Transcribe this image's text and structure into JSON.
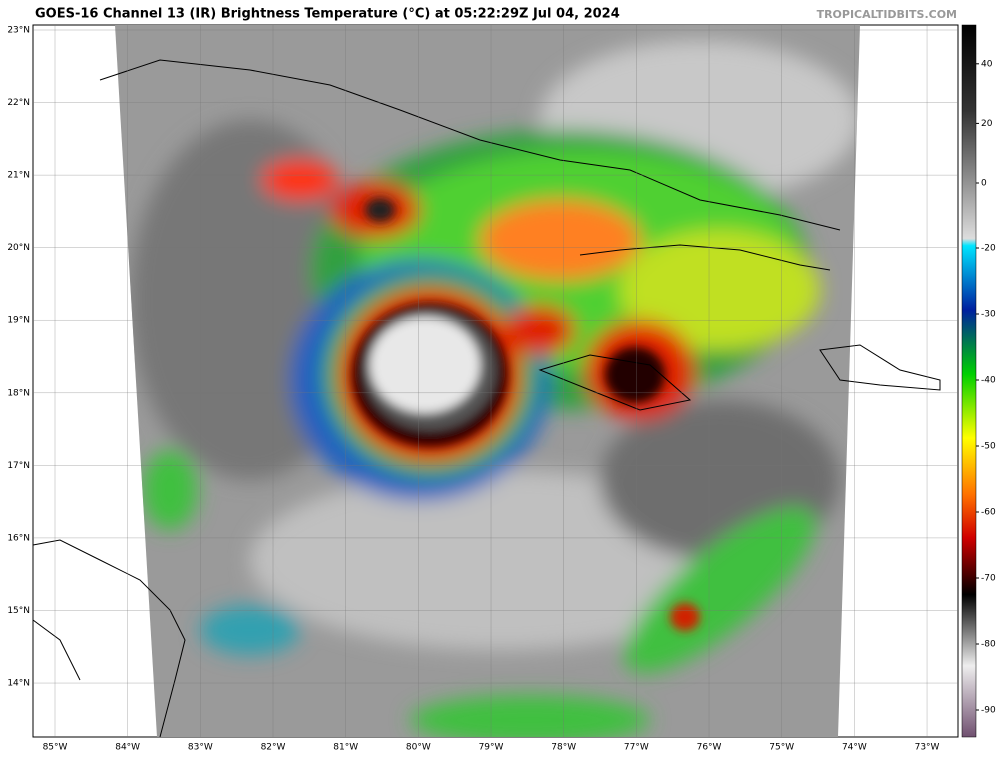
{
  "header": {
    "title": "GOES-16 Channel 13 (IR) Brightness Temperature (°C) at 05:22:29Z Jul 04, 2024",
    "credit": "TROPICALTIDBITS.COM"
  },
  "map": {
    "longitudes": [
      {
        "value": -85,
        "label": "85°W"
      },
      {
        "value": -84,
        "label": "84°W"
      },
      {
        "value": -83,
        "label": "83°W"
      },
      {
        "value": -82,
        "label": "82°W"
      },
      {
        "value": -81,
        "label": "81°W"
      },
      {
        "value": -80,
        "label": "80°W"
      },
      {
        "value": -79,
        "label": "79°W"
      },
      {
        "value": -78,
        "label": "78°W"
      },
      {
        "value": -77,
        "label": "77°W"
      },
      {
        "value": -76,
        "label": "76°W"
      },
      {
        "value": -75,
        "label": "75°W"
      },
      {
        "value": -74,
        "label": "74°W"
      },
      {
        "value": -73,
        "label": "73°W"
      }
    ],
    "latitudes": [
      {
        "value": 23,
        "label": "23°N"
      },
      {
        "value": 22,
        "label": "22°N"
      },
      {
        "value": 21,
        "label": "21°N"
      },
      {
        "value": 20,
        "label": "20°N"
      },
      {
        "value": 19,
        "label": "19°N"
      },
      {
        "value": 18,
        "label": "18°N"
      },
      {
        "value": 17,
        "label": "17°N"
      },
      {
        "value": 16,
        "label": "16°N"
      },
      {
        "value": 15,
        "label": "15°N"
      },
      {
        "value": 14,
        "label": "14°N"
      }
    ]
  },
  "colorbar": {
    "ticks": [
      40,
      20,
      0,
      -20,
      -30,
      -40,
      -50,
      -60,
      -70,
      -80,
      -90
    ]
  }
}
